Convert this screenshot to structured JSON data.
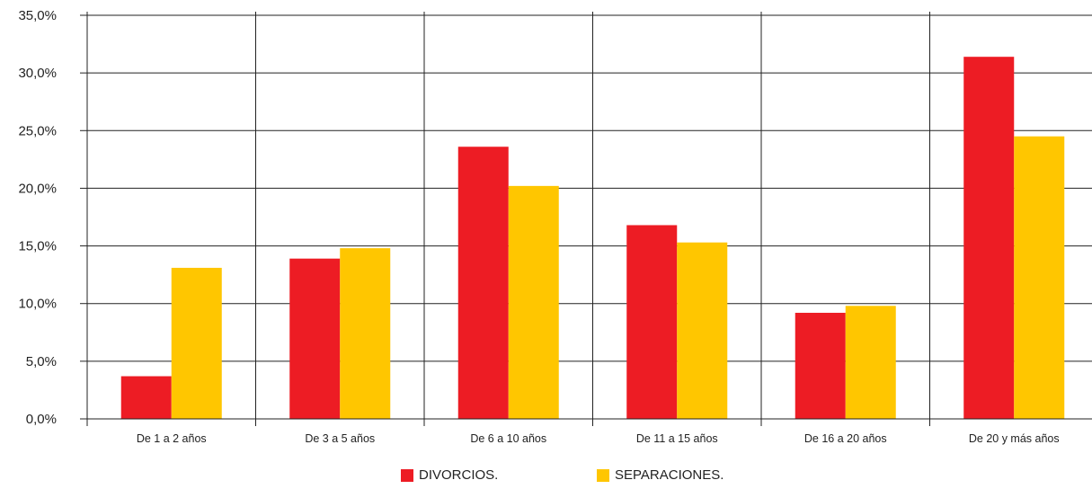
{
  "chart_data": {
    "type": "bar",
    "categories": [
      "De 1 a 2 años",
      "De 3 a 5 años",
      "De 6 a 10 años",
      "De 11 a 15 años",
      "De 16 a 20 años",
      "De 20 y más años"
    ],
    "series": [
      {
        "name": "DIVORCIOS.",
        "color": "#ed1c24",
        "values": [
          3.7,
          13.9,
          23.6,
          16.8,
          9.2,
          31.4
        ]
      },
      {
        "name": "SEPARACIONES.",
        "color": "#ffc600",
        "values": [
          13.1,
          14.8,
          20.2,
          15.3,
          9.8,
          24.5
        ]
      }
    ],
    "yticks": [
      "0,0%",
      "5,0%",
      "10,0%",
      "15,0%",
      "20,0%",
      "25,0%",
      "30,0%",
      "35,0%"
    ],
    "ylim": [
      0,
      35
    ],
    "grid": true,
    "legend_position": "bottom"
  }
}
